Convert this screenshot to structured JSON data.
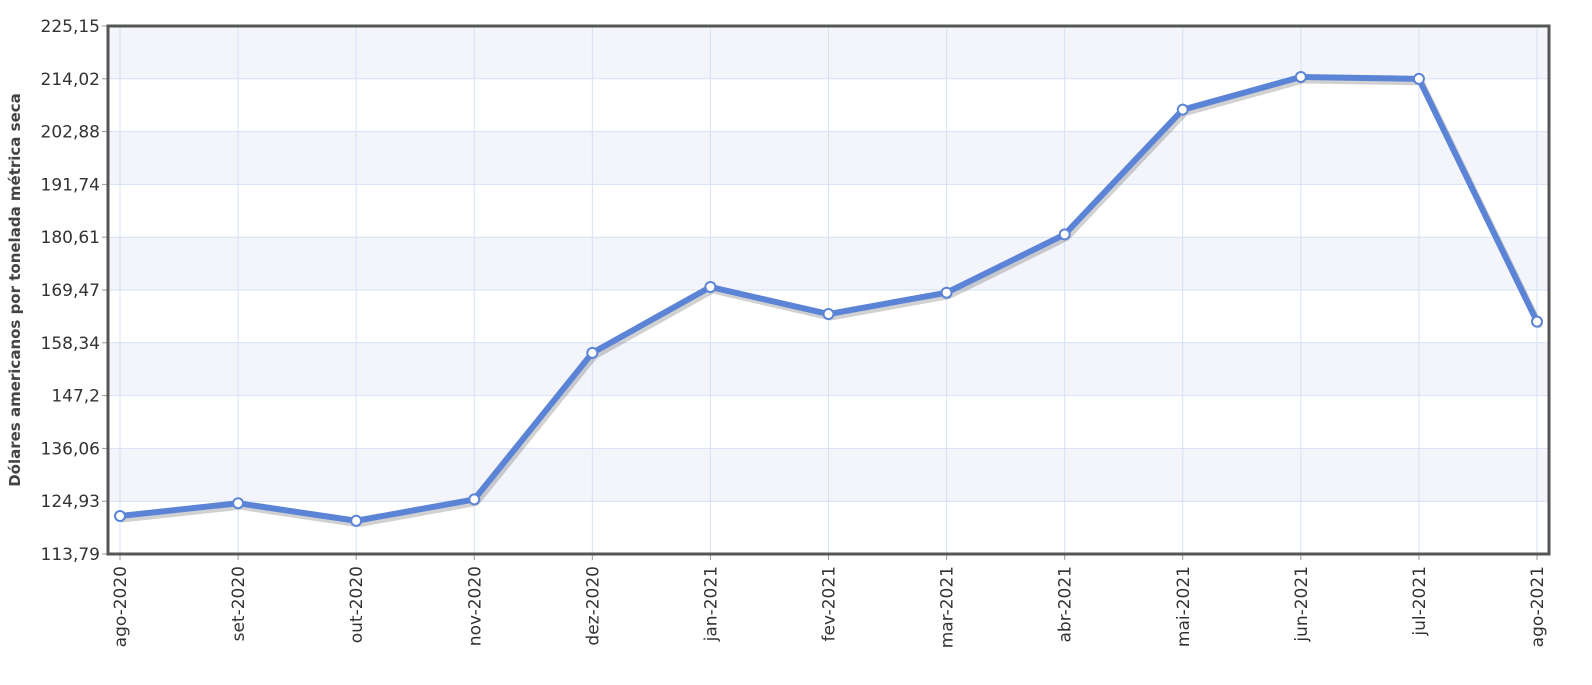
{
  "chart_data": {
    "type": "line",
    "title": "",
    "xlabel": "",
    "ylabel": "Dólares americanos por tonelada métrica seca",
    "categories": [
      "ago-2020",
      "set-2020",
      "out-2020",
      "nov-2020",
      "dez-2020",
      "jan-2021",
      "fev-2021",
      "mar-2021",
      "abr-2021",
      "mai-2021",
      "jun-2021",
      "jul-2021",
      "ago-2021"
    ],
    "series": [
      {
        "values": [
          121.8,
          124.5,
          120.8,
          125.3,
          156.2,
          170.1,
          164.4,
          168.9,
          181.2,
          207.5,
          214.4,
          214.0,
          162.8
        ]
      }
    ],
    "ylim": [
      113.79,
      225.15
    ],
    "yticks": [
      "113,79",
      "124,93",
      "136,06",
      "147,2",
      "158,34",
      "169,47",
      "180,61",
      "191,74",
      "202,88",
      "214,02",
      "225,15"
    ],
    "grid": true,
    "legend": "none",
    "colors": {
      "line": "#5b84d6",
      "band": "#f3f5fb",
      "grid": "#d6e1f5",
      "frame": "#555555",
      "marker_fill": "#ffffff"
    }
  }
}
